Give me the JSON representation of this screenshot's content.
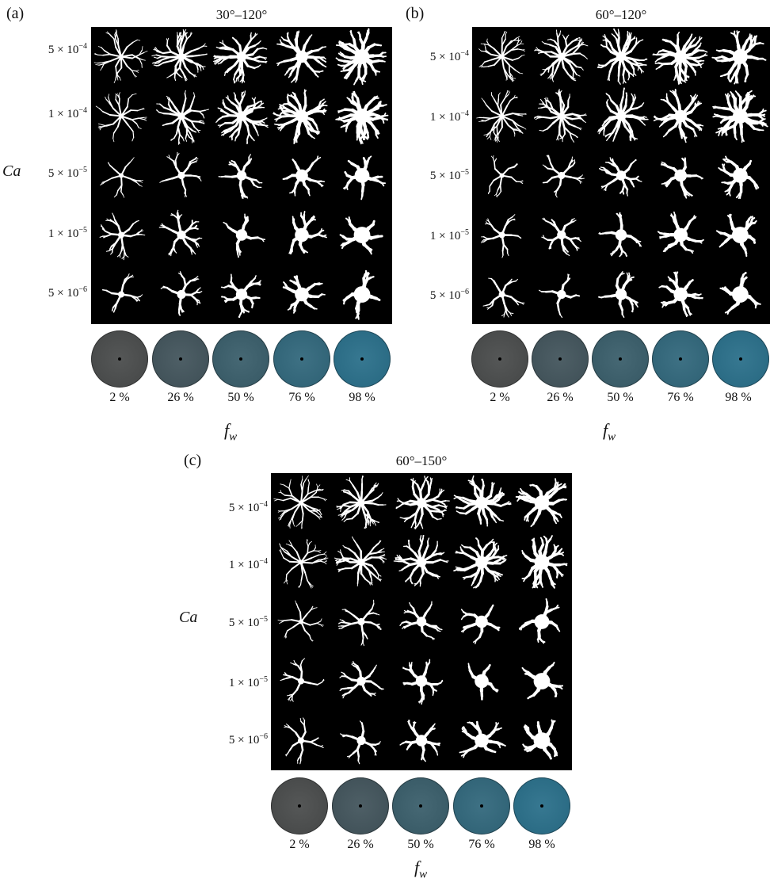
{
  "panels": [
    {
      "id": "a",
      "label": "(a)",
      "title": "30°–120°",
      "ca_values": [
        {
          "mantissa": "5 × 10",
          "exp": "−4"
        },
        {
          "mantissa": "1 × 10",
          "exp": "−4"
        },
        {
          "mantissa": "5 × 10",
          "exp": "−5"
        },
        {
          "mantissa": "1 × 10",
          "exp": "−5"
        },
        {
          "mantissa": "5 × 10",
          "exp": "−6"
        }
      ],
      "ca_axis_label": "Ca",
      "fw_ticks": [
        "2 %",
        "26 %",
        "50 %",
        "76 %",
        "98 %"
      ],
      "fw_axis_label": "f",
      "fw_axis_sub": "w"
    },
    {
      "id": "b",
      "label": "(b)",
      "title": "60°–120°",
      "ca_values": [
        {
          "mantissa": "5 × 10",
          "exp": "−4"
        },
        {
          "mantissa": "1 × 10",
          "exp": "−4"
        },
        {
          "mantissa": "5 × 10",
          "exp": "−5"
        },
        {
          "mantissa": "1 × 10",
          "exp": "−5"
        },
        {
          "mantissa": "5 × 10",
          "exp": "−6"
        }
      ],
      "ca_axis_label": "",
      "fw_ticks": [
        "2 %",
        "26 %",
        "50 %",
        "76 %",
        "98 %"
      ],
      "fw_axis_label": "f",
      "fw_axis_sub": "w"
    },
    {
      "id": "c",
      "label": "(c)",
      "title": "60°–150°",
      "ca_values": [
        {
          "mantissa": "5 × 10",
          "exp": "−4"
        },
        {
          "mantissa": "1 × 10",
          "exp": "−4"
        },
        {
          "mantissa": "5 × 10",
          "exp": "−5"
        },
        {
          "mantissa": "1 × 10",
          "exp": "−5"
        },
        {
          "mantissa": "5 × 10",
          "exp": "−6"
        }
      ],
      "ca_axis_label": "Ca",
      "fw_ticks": [
        "2 %",
        "26 %",
        "50 %",
        "76 %",
        "98 %"
      ],
      "fw_axis_label": "f",
      "fw_axis_sub": "w"
    }
  ],
  "colors": {
    "background": "#000000",
    "pattern": "#ffffff",
    "disk_dry": "#4a4a4a",
    "disk_wet": "#2a6d86"
  }
}
